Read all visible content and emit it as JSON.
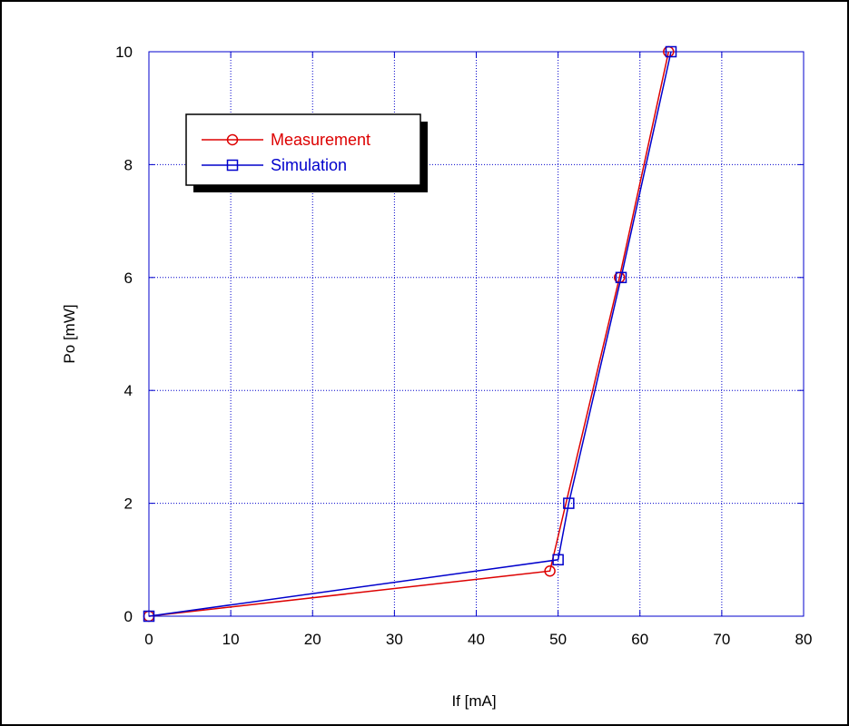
{
  "chart_data": {
    "type": "line",
    "title": "",
    "xlabel": "If [mA]",
    "ylabel": "Po [mW]",
    "xlim": [
      0,
      80
    ],
    "ylim": [
      0,
      10
    ],
    "xticks": [
      0,
      10,
      20,
      30,
      40,
      50,
      60,
      70,
      80
    ],
    "yticks": [
      0,
      2,
      4,
      6,
      8,
      10
    ],
    "xtick_labels": [
      "0",
      "10",
      "20",
      "30",
      "40",
      "50",
      "60",
      "70",
      "80"
    ],
    "ytick_labels": [
      "0",
      "2",
      "4",
      "6",
      "8",
      "10"
    ],
    "grid": true,
    "legend_position": "top-left",
    "series": [
      {
        "name": "Measurement",
        "color": "#dd0000",
        "marker": "circle",
        "x": [
          0,
          49,
          57.5,
          63.5
        ],
        "y": [
          0,
          0.8,
          6,
          10
        ]
      },
      {
        "name": "Simulation",
        "color": "#0000cc",
        "marker": "square",
        "x": [
          0,
          50,
          51.3,
          57.7,
          63.8
        ],
        "y": [
          0,
          1,
          2,
          6,
          10
        ]
      }
    ]
  },
  "colors": {
    "axis": "#0000cc",
    "grid": "#0000cc",
    "frame": "#000000",
    "text": "#000000"
  }
}
